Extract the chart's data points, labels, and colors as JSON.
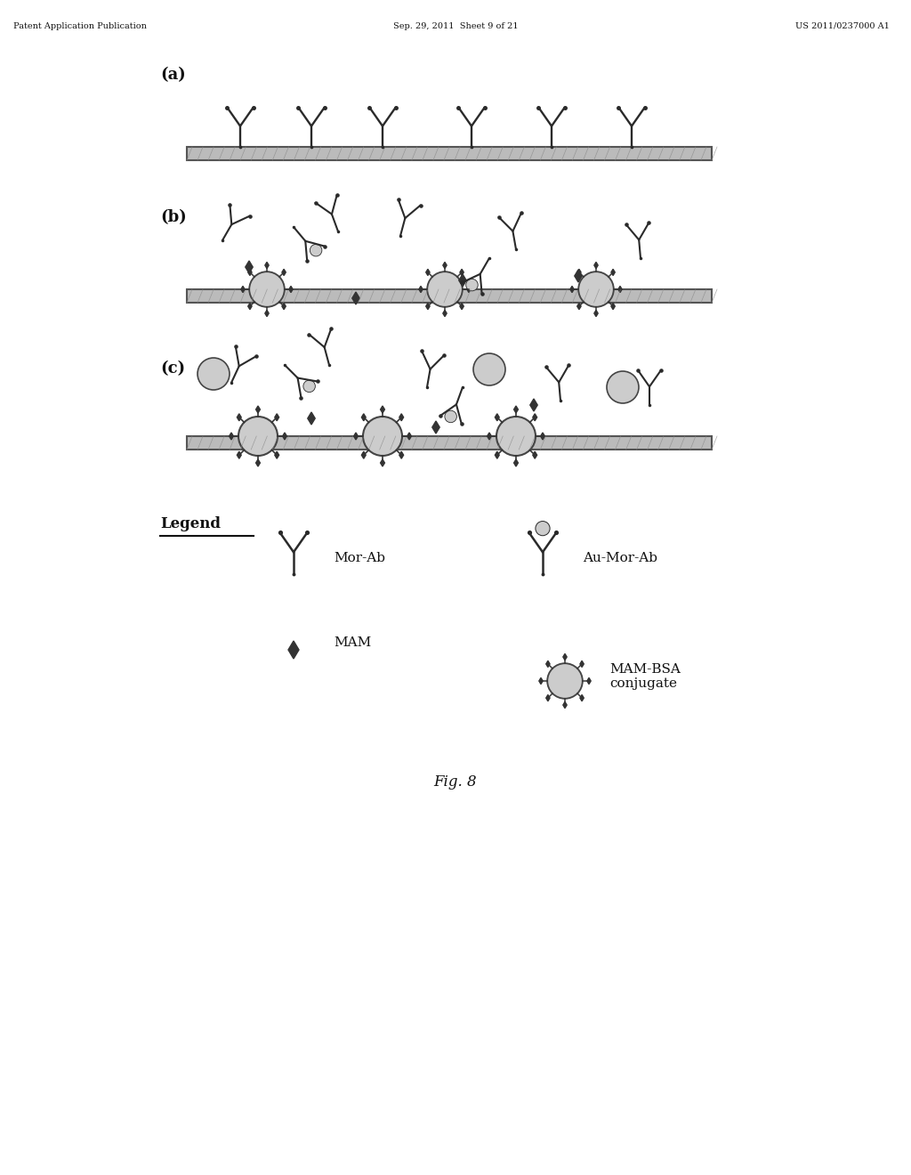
{
  "background_color": "#ffffff",
  "header_left": "Patent Application Publication",
  "header_center": "Sep. 29, 2011  Sheet 9 of 21",
  "header_right": "US 2011/0237000 A1",
  "label_a": "(a)",
  "label_b": "(b)",
  "label_c": "(c)",
  "figure_label": "Fig. 8",
  "legend_title": "Legend",
  "dark_color": "#2a2a2a",
  "mid_color": "#555555",
  "light_gray": "#aaaaaa",
  "surface_color": "#bbbbbb",
  "surface_dark": "#888888"
}
